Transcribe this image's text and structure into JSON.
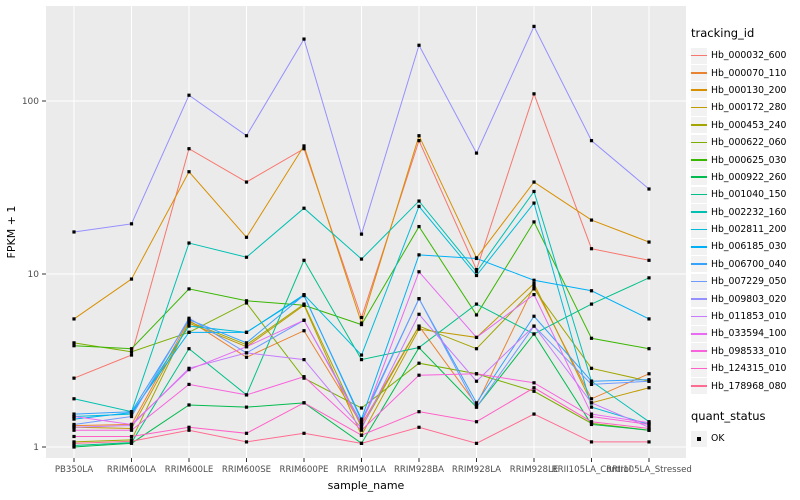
{
  "axes": {
    "x_title": "sample_name",
    "y_title": "FPKM + 1",
    "y_tick_labels": [
      "1",
      "10",
      "100"
    ]
  },
  "legend": {
    "title": "tracking_id"
  },
  "quant_legend": {
    "title": "quant_status",
    "items": [
      {
        "label": "OK",
        "marker": "black-square"
      }
    ]
  },
  "chart_data": {
    "type": "line",
    "title": "",
    "xlabel": "sample_name",
    "ylabel": "FPKM + 1",
    "y_scale": "log10",
    "y_ticks": [
      1,
      10,
      100
    ],
    "ylim": [
      1,
      320
    ],
    "grid": "white major gridlines on grey panel",
    "legend_position": "right",
    "point_marker": {
      "shape": "square",
      "color": "#000000",
      "meaning": "quant_status OK"
    },
    "panel_background": "#EBEBEB",
    "categories": [
      "PB350LA",
      "RRIM600LA",
      "RRIM600LE",
      "RRIM600SE",
      "RRIM600PE",
      "RRIM901LA",
      "RRIM928BA",
      "RRIM928LA",
      "RRIM928LE",
      "RRII105LA_Control",
      "RRII105LA_Stressed"
    ],
    "series": [
      {
        "id": "Hb_000032_600",
        "color": "#F8766D",
        "values": [
          2.5,
          3.4,
          53,
          34,
          53,
          5.6,
          59,
          10.6,
          110,
          14,
          12
        ]
      },
      {
        "id": "Hb_000070_110",
        "color": "#EA8331",
        "values": [
          1.33,
          1.35,
          5.4,
          3.3,
          4.7,
          1.35,
          5.0,
          1.75,
          8.5,
          1.9,
          2.65
        ]
      },
      {
        "id": "Hb_000130_200",
        "color": "#D89000",
        "values": [
          5.5,
          9.35,
          39,
          16.3,
          55,
          5.2,
          63,
          12.4,
          34,
          20.5,
          15.3
        ]
      },
      {
        "id": "Hb_000172_280",
        "color": "#C09B00",
        "values": [
          1.3,
          1.28,
          5.2,
          3.8,
          6.6,
          1.17,
          4.8,
          4.3,
          8.8,
          1.8,
          2.2
        ]
      },
      {
        "id": "Hb_000453_240",
        "color": "#A3A500",
        "values": [
          1.07,
          1.1,
          5.3,
          3.9,
          6.7,
          1.3,
          5.0,
          3.7,
          8.2,
          2.85,
          2.4
        ]
      },
      {
        "id": "Hb_000622_060",
        "color": "#7CAE00",
        "values": [
          4.0,
          3.55,
          4.6,
          6.8,
          2.5,
          1.68,
          3.05,
          2.65,
          2.1,
          1.37,
          1.25
        ]
      },
      {
        "id": "Hb_000625_030",
        "color": "#39B600",
        "values": [
          3.85,
          3.7,
          8.2,
          7.0,
          6.6,
          5.1,
          18.8,
          5.8,
          20,
          4.25,
          3.7
        ]
      },
      {
        "id": "Hb_000922_260",
        "color": "#00BB4E",
        "values": [
          1.0,
          1.05,
          1.75,
          1.7,
          1.8,
          1.05,
          3.75,
          1.7,
          4.5,
          1.35,
          1.25
        ]
      },
      {
        "id": "Hb_001040_150",
        "color": "#00C087",
        "values": [
          1.02,
          1.06,
          3.7,
          2.0,
          12,
          3.2,
          3.76,
          6.7,
          4.5,
          6.7,
          9.5
        ]
      },
      {
        "id": "Hb_002232_160",
        "color": "#00C0B2",
        "values": [
          1.9,
          1.6,
          15.1,
          12.5,
          24,
          12.2,
          26.4,
          10.3,
          30,
          2.4,
          1.4
        ]
      },
      {
        "id": "Hb_002811_200",
        "color": "#00BCD8",
        "values": [
          1.5,
          1.55,
          5.0,
          4.6,
          7.6,
          3.4,
          24.6,
          9.8,
          25.7,
          1.7,
          1.35
        ]
      },
      {
        "id": "Hb_006185_030",
        "color": "#00B0F6",
        "values": [
          1.45,
          1.58,
          4.6,
          4.6,
          7.5,
          1.45,
          12.9,
          12.3,
          9.2,
          8.0,
          5.5
        ]
      },
      {
        "id": "Hb_006700_040",
        "color": "#35A2FF",
        "values": [
          1.55,
          1.6,
          5.45,
          4.0,
          7.55,
          1.42,
          7.2,
          1.8,
          5.7,
          2.4,
          2.45
        ]
      },
      {
        "id": "Hb_007229_050",
        "color": "#6F9BFF",
        "values": [
          1.35,
          1.5,
          5.55,
          3.5,
          5.4,
          1.38,
          7.2,
          1.7,
          5.0,
          2.3,
          2.4
        ]
      },
      {
        "id": "Hb_009803_020",
        "color": "#9590FF",
        "values": [
          17.5,
          19.5,
          108,
          63,
          228,
          17,
          210,
          50,
          270,
          59,
          31
        ]
      },
      {
        "id": "Hb_011853_010",
        "color": "#C77CFF",
        "values": [
          1.3,
          1.33,
          2.85,
          3.5,
          3.2,
          1.28,
          5.85,
          2.4,
          5.0,
          1.8,
          1.3
        ]
      },
      {
        "id": "Hb_033594_100",
        "color": "#E76BF3",
        "values": [
          1.5,
          1.35,
          2.8,
          3.8,
          5.4,
          1.35,
          10.3,
          4.3,
          7.6,
          1.55,
          1.38
        ]
      },
      {
        "id": "Hb_098533_010",
        "color": "#F862DD",
        "values": [
          1.25,
          1.25,
          2.3,
          2.0,
          2.55,
          1.25,
          2.6,
          2.65,
          2.35,
          1.5,
          1.35
        ]
      },
      {
        "id": "Hb_124315_010",
        "color": "#FF61C7",
        "values": [
          1.15,
          1.15,
          1.3,
          1.2,
          1.8,
          1.17,
          1.6,
          1.4,
          2.2,
          1.4,
          1.28
        ]
      },
      {
        "id": "Hb_178968_080",
        "color": "#FF6C92",
        "values": [
          1.05,
          1.08,
          1.25,
          1.07,
          1.2,
          1.05,
          1.3,
          1.05,
          1.55,
          1.07,
          1.07
        ]
      }
    ]
  }
}
